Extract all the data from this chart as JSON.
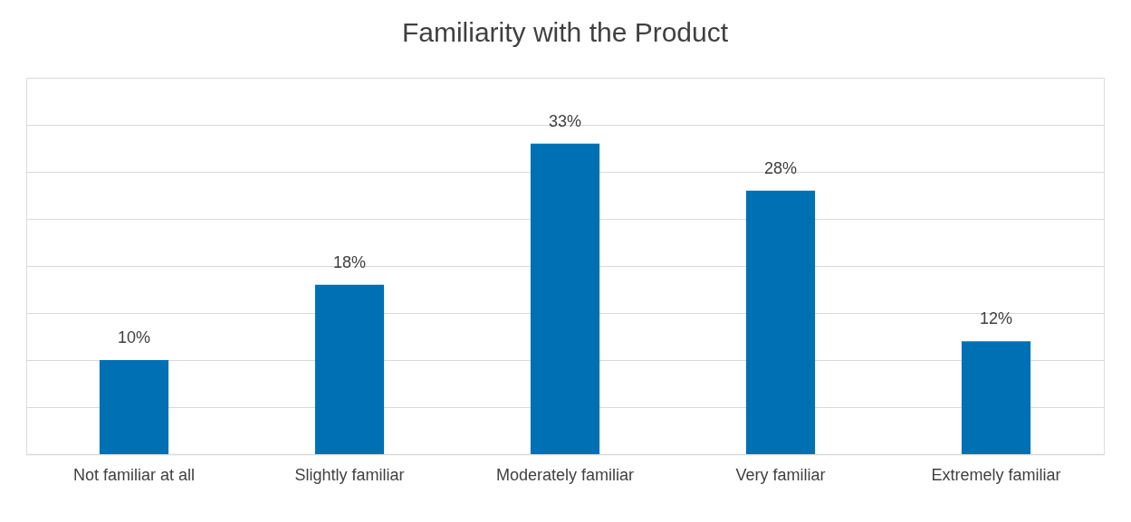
{
  "chart_data": {
    "type": "bar",
    "title": "Familiarity with the Product",
    "categories": [
      "Not familiar at all",
      "Slightly familiar",
      "Moderately familiar",
      "Very familiar",
      "Extremely familiar"
    ],
    "values": [
      10,
      18,
      33,
      28,
      12
    ],
    "value_labels": [
      "10%",
      "18%",
      "33%",
      "28%",
      "12%"
    ],
    "color": "#0070b4",
    "ylim": [
      0,
      40
    ],
    "yticks": [
      {
        "value": 0,
        "label": null
      },
      {
        "value": 5,
        "label": null
      },
      {
        "value": 10,
        "label": null
      },
      {
        "value": 15,
        "label": null
      },
      {
        "value": 20,
        "label": null
      },
      {
        "value": 25,
        "label": null
      },
      {
        "value": 30,
        "label": null
      },
      {
        "value": 35,
        "label": null
      },
      {
        "value": 40,
        "label": null
      }
    ],
    "grid": "y",
    "tick_labels": "x"
  }
}
